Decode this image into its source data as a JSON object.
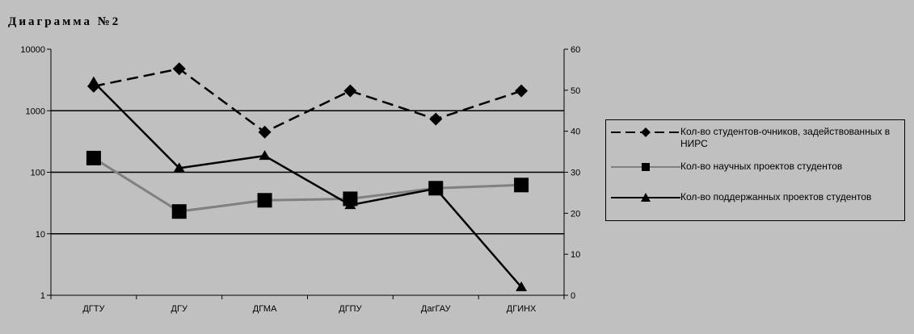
{
  "chart_data": {
    "type": "line",
    "title": "Диаграмма №2",
    "categories": [
      "ДГТУ",
      "ДГУ",
      "ДГМА",
      "ДГПУ",
      "ДагГАУ",
      "ДГИНХ"
    ],
    "left_axis": {
      "scale": "log",
      "ylim": [
        1,
        10000
      ],
      "tick_labels": [
        "10000",
        "1000",
        "100",
        "10",
        "1"
      ]
    },
    "right_axis": {
      "scale": "linear",
      "ylim": [
        0,
        60
      ],
      "tick_labels": [
        "60",
        "50",
        "40",
        "30",
        "20",
        "10",
        "0"
      ]
    },
    "grid": "horizontal major gridlines at log decades",
    "legend_position": "right",
    "series": [
      {
        "name": "Кол-во студентов-очников, задействованных в НИРС",
        "axis": "left",
        "marker": "diamond",
        "line_style": "dashed",
        "color": "#000000",
        "values": [
          2500,
          4800,
          450,
          2100,
          730,
          2100
        ]
      },
      {
        "name": "Кол-во научных проектов студентов",
        "axis": "left",
        "marker": "square",
        "line_style": "solid",
        "color": "#808080",
        "values": [
          170,
          23,
          35,
          37,
          55,
          62
        ]
      },
      {
        "name": "Кол-во поддержанных проектов студентов",
        "axis": "right",
        "marker": "triangle",
        "line_style": "solid",
        "color": "#000000",
        "values": [
          52,
          31,
          34,
          22,
          26,
          2
        ]
      }
    ]
  }
}
